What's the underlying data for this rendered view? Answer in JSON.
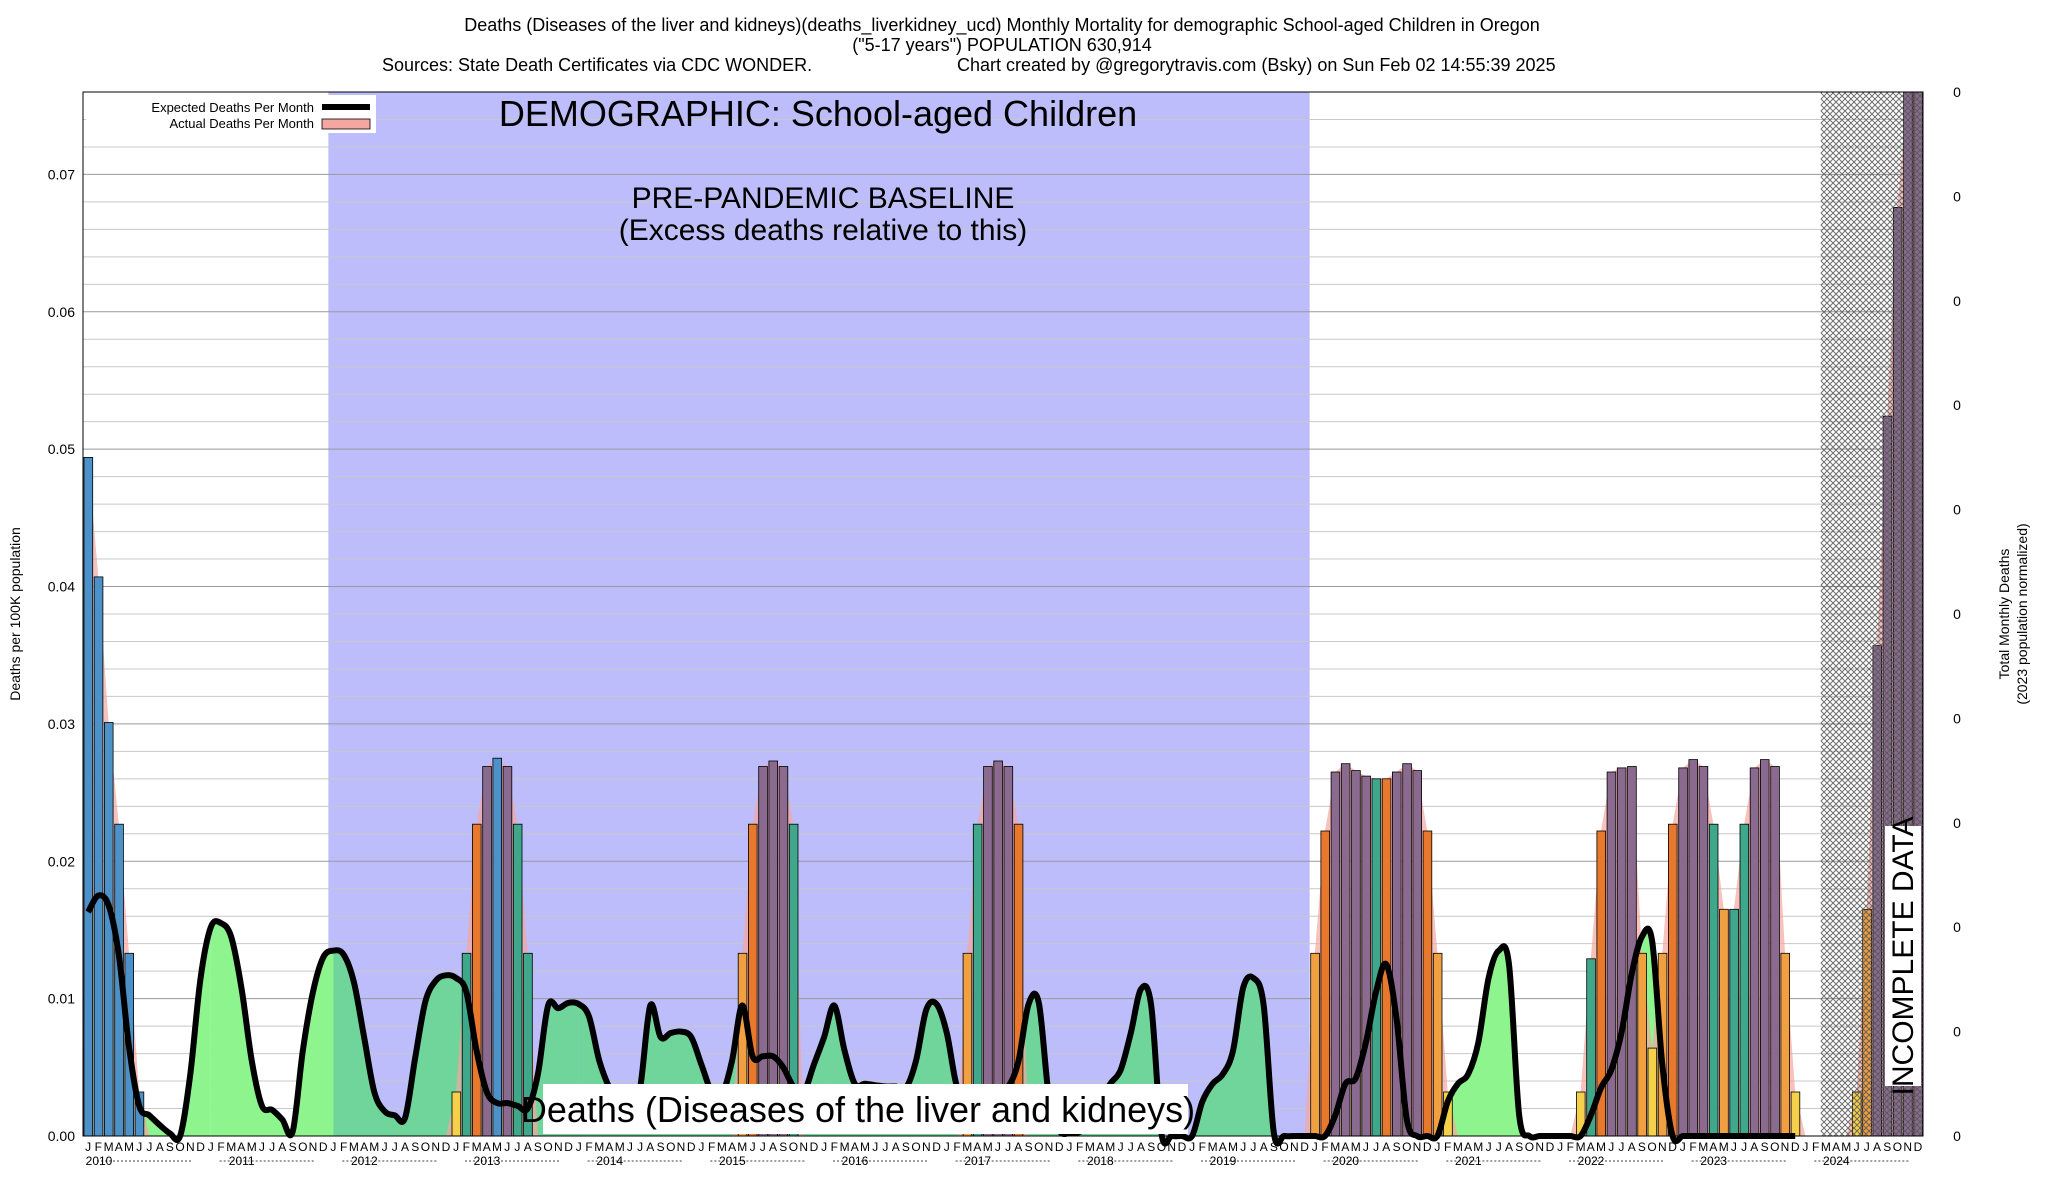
{
  "header": {
    "title_line1": "Deaths (Diseases of the liver and kidneys)(deaths_liverkidney_ucd) Monthly Mortality for demographic School-aged Children in Oregon",
    "title_line2": "(\"5-17 years\") POPULATION 630,914",
    "sources": "Sources: State Death Certificates via CDC WONDER.",
    "credit": "Chart created by @gregorytravis.com (Bsky) on Sun Feb 02 14:55:39 2025"
  },
  "annotations": {
    "demographic": "DEMOGRAPHIC: School-aged Children",
    "baseline_line1": "PRE-PANDEMIC BASELINE",
    "baseline_line2": "(Excess deaths relative to this)",
    "cause_label": "Deaths (Diseases of the liver and kidneys)",
    "incomplete": "INCOMPLETE DATA"
  },
  "legend": {
    "expected": "Expected Deaths Per Month",
    "actual": "Actual Deaths Per Month"
  },
  "colors": {
    "baseline_band": "#bdbdfb",
    "expected_line": "#000000",
    "actual_fill": "#f4a6a0",
    "incomplete_hatch": "#555555",
    "fill_green": "#8ef58e",
    "fill_teal": "#6fd59a"
  },
  "chart_data": {
    "type": "bar",
    "ylabel_left": "Deaths per 100K population",
    "ylabel_right_line1": "Total Monthly Deaths",
    "ylabel_right_line2": "(2023 population normalized)",
    "ylim": [
      0,
      0.076
    ],
    "yticks_left": [
      "0.00",
      "0.01",
      "0.02",
      "0.03",
      "0.04",
      "0.05",
      "0.06",
      "0.07"
    ],
    "yticks_right": [
      "0",
      "0",
      "0",
      "0",
      "0",
      "0",
      "0",
      "0",
      "0",
      "0",
      "0"
    ],
    "years": [
      "2010",
      "2011",
      "2012",
      "2013",
      "2014",
      "2015",
      "2016",
      "2017",
      "2018",
      "2019",
      "2020",
      "2021",
      "2022",
      "2023",
      "2024"
    ],
    "month_letters": [
      "J",
      "F",
      "M",
      "A",
      "M",
      "J",
      "J",
      "A",
      "S",
      "O",
      "N",
      "D"
    ],
    "baseline_period": [
      "2012-01",
      "2019-12"
    ],
    "incomplete_period": [
      "2024-04",
      "2024-12"
    ],
    "grid": true,
    "legend_position": "top-left",
    "series": [
      {
        "name": "Expected Deaths Per Month",
        "values": [
          0.0163,
          0.0175,
          0.0168,
          0.0132,
          0.0065,
          0.0022,
          0.0015,
          0.0008,
          0.0002,
          0,
          0.0045,
          0.0115,
          0.0152,
          0.0155,
          0.0145,
          0.0108,
          0.0055,
          0.0022,
          0.0019,
          0.0012,
          0.0003,
          0.0062,
          0.0105,
          0.013,
          0.0135,
          0.0132,
          0.0112,
          0.0072,
          0.0032,
          0.0018,
          0.0015,
          0.0013,
          0.0057,
          0.0098,
          0.0113,
          0.0117,
          0.0115,
          0.0105,
          0.0062,
          0.0032,
          0.0024,
          0.0024,
          0.0022,
          0.002,
          0.0045,
          0.0095,
          0.0093,
          0.0097,
          0.0096,
          0.0087,
          0.0055,
          0.0035,
          0.0022,
          0.0018,
          0.0035,
          0.0095,
          0.0072,
          0.0075,
          0.0076,
          0.0072,
          0.0052,
          0.0032,
          0.003,
          0.0055,
          0.0095,
          0.0058,
          0.0058,
          0.0058,
          0.005,
          0.0036,
          0.0032,
          0.0052,
          0.0072,
          0.0095,
          0.0062,
          0.0038,
          0.0038,
          0.0037,
          0.0036,
          0.0036,
          0.0035,
          0.0055,
          0.0092,
          0.0096,
          0.0075,
          0.0036,
          0.0034,
          0.0033,
          0.0034,
          0.0035,
          0.0036,
          0.0054,
          0.0096,
          0.0097,
          0.0028,
          0.0004,
          0.0002,
          0.0003,
          0.0009,
          0.0025,
          0.0038,
          0.0048,
          0.0075,
          0.0107,
          0.0095,
          0.0002,
          0,
          0,
          0,
          0.0025,
          0.0038,
          0.0045,
          0.0062,
          0.0108,
          0.0115,
          0.0095,
          0.0002,
          0,
          0,
          0,
          0,
          0,
          0.0015,
          0.0038,
          0.0042,
          0.0068,
          0.0105,
          0.0125,
          0.0085,
          0.0012,
          0,
          0,
          0,
          0.0025,
          0.0038,
          0.0045,
          0.0068,
          0.0115,
          0.0135,
          0.0125,
          0.0015,
          0,
          0,
          0,
          0,
          0,
          0,
          0.0015,
          0.0035,
          0.0048,
          0.0075,
          0.0118,
          0.0145,
          0.0142,
          0.0052,
          0,
          0,
          0,
          0,
          0,
          0,
          0,
          0,
          0,
          0,
          0,
          0,
          0
        ]
      },
      {
        "name": "Actual Deaths Per Month",
        "values": [
          0.0494,
          0.0407,
          0.0301,
          0.0227,
          0.0133,
          0.0032,
          0,
          0,
          0,
          0,
          0,
          0,
          0,
          0,
          0,
          0,
          0,
          0,
          0,
          0,
          0,
          0,
          0,
          0,
          0,
          0,
          0,
          0,
          0,
          0,
          0,
          0,
          0,
          0,
          0,
          0,
          0.0032,
          0.0133,
          0.0227,
          0.0269,
          0.0275,
          0.0269,
          0.0227,
          0.0133,
          0,
          0,
          0,
          0,
          0,
          0,
          0,
          0,
          0,
          0,
          0,
          0,
          0,
          0,
          0,
          0,
          0,
          0,
          0,
          0,
          0.0133,
          0.0227,
          0.0269,
          0.0273,
          0.0269,
          0.0227,
          0,
          0,
          0,
          0,
          0,
          0,
          0,
          0,
          0,
          0,
          0,
          0,
          0,
          0,
          0,
          0,
          0.0133,
          0.0227,
          0.0269,
          0.0273,
          0.0269,
          0.0227,
          0,
          0,
          0,
          0,
          0,
          0,
          0,
          0,
          0,
          0,
          0,
          0,
          0,
          0,
          0,
          0,
          0,
          0,
          0,
          0,
          0,
          0,
          0,
          0,
          0,
          0,
          0,
          0,
          0.0133,
          0.0222,
          0.0265,
          0.0271,
          0.0266,
          0.0262,
          0.026,
          0.026,
          0.0265,
          0.0271,
          0.0266,
          0.0222,
          0.0133,
          0.0032,
          0,
          0,
          0,
          0,
          0,
          0,
          0,
          0,
          0,
          0,
          0,
          0,
          0.0032,
          0.0129,
          0.0222,
          0.0265,
          0.0268,
          0.0269,
          0.0133,
          0.0064,
          0.0133,
          0.0227,
          0.0268,
          0.0274,
          0.0269,
          0.0227,
          0.0165,
          0.0165,
          0.0227,
          0.0268,
          0.0274,
          0.0269,
          0.0133,
          0.0032,
          0,
          0,
          0,
          0,
          0,
          0.0032,
          0.0165,
          0.0357,
          0.0524,
          0.0676,
          0.076,
          0.076
        ]
      }
    ]
  }
}
